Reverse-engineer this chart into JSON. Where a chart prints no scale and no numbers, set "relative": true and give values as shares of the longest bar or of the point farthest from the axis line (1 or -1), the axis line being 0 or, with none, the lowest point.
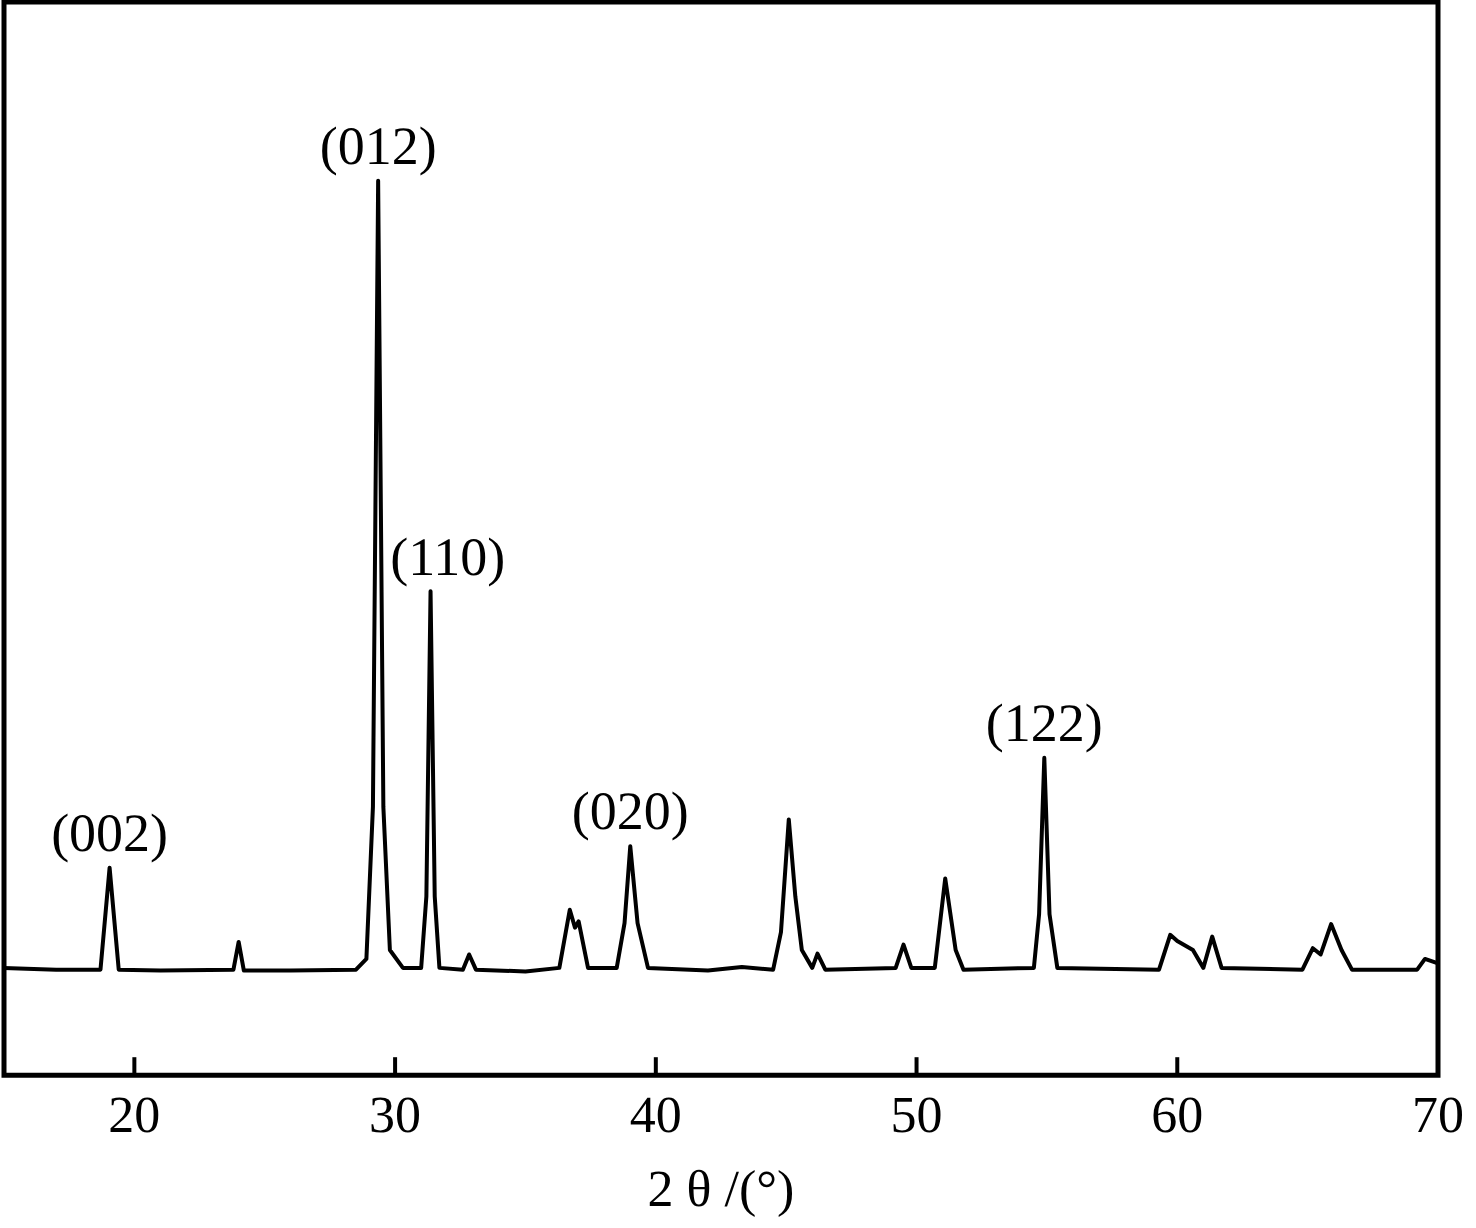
{
  "chart_data": {
    "type": "line",
    "xlabel": "2 θ /(°)",
    "relative": true,
    "xlim": [
      15,
      70
    ],
    "xticks": [
      20,
      30,
      40,
      50,
      60,
      70
    ],
    "grid": false,
    "legend": false,
    "marker": "none",
    "line_style": "solid",
    "series": [
      {
        "color": "#000000",
        "x": [
          15,
          17,
          18.7,
          19.05,
          19.4,
          21,
          23.8,
          24.0,
          24.2,
          26,
          28.5,
          28.9,
          29.15,
          29.35,
          29.55,
          29.8,
          30.3,
          31.0,
          31.2,
          31.36,
          31.52,
          31.7,
          32.6,
          32.84,
          33.1,
          35,
          36.3,
          36.7,
          36.9,
          37.04,
          37.4,
          38.5,
          38.8,
          39.02,
          39.3,
          39.7,
          42,
          43.3,
          44.5,
          44.8,
          45.1,
          45.35,
          45.6,
          46.0,
          46.2,
          46.5,
          49.2,
          49.5,
          49.8,
          50.7,
          51.1,
          51.5,
          51.8,
          54.5,
          54.7,
          54.9,
          55.1,
          55.4,
          59.3,
          59.73,
          60.0,
          60.6,
          61.0,
          61.34,
          61.7,
          64.8,
          65.2,
          65.5,
          65.9,
          66.3,
          66.7,
          69.2,
          69.5,
          70
        ],
        "values": [
          0.12,
          0.118,
          0.118,
          0.232,
          0.118,
          0.117,
          0.118,
          0.149,
          0.117,
          0.117,
          0.118,
          0.13,
          0.3,
          1.0,
          0.3,
          0.14,
          0.12,
          0.12,
          0.2,
          0.541,
          0.2,
          0.12,
          0.118,
          0.135,
          0.118,
          0.116,
          0.12,
          0.185,
          0.165,
          0.172,
          0.12,
          0.12,
          0.17,
          0.256,
          0.17,
          0.12,
          0.117,
          0.121,
          0.118,
          0.16,
          0.286,
          0.2,
          0.14,
          0.12,
          0.136,
          0.118,
          0.12,
          0.146,
          0.12,
          0.12,
          0.22,
          0.14,
          0.118,
          0.12,
          0.18,
          0.355,
          0.18,
          0.12,
          0.118,
          0.157,
          0.15,
          0.14,
          0.12,
          0.155,
          0.12,
          0.118,
          0.142,
          0.135,
          0.169,
          0.14,
          0.118,
          0.118,
          0.13,
          0.125
        ]
      }
    ],
    "annotations": [
      {
        "text": "(002)",
        "x": 19.05,
        "y": 0.232
      },
      {
        "text": "(012)",
        "x": 29.35,
        "y": 1.0
      },
      {
        "text": "(110)",
        "x": 31.36,
        "y": 0.541
      },
      {
        "text": "(020)",
        "x": 39.02,
        "y": 0.256
      },
      {
        "text": "(122)",
        "x": 54.9,
        "y": 0.355
      }
    ]
  }
}
